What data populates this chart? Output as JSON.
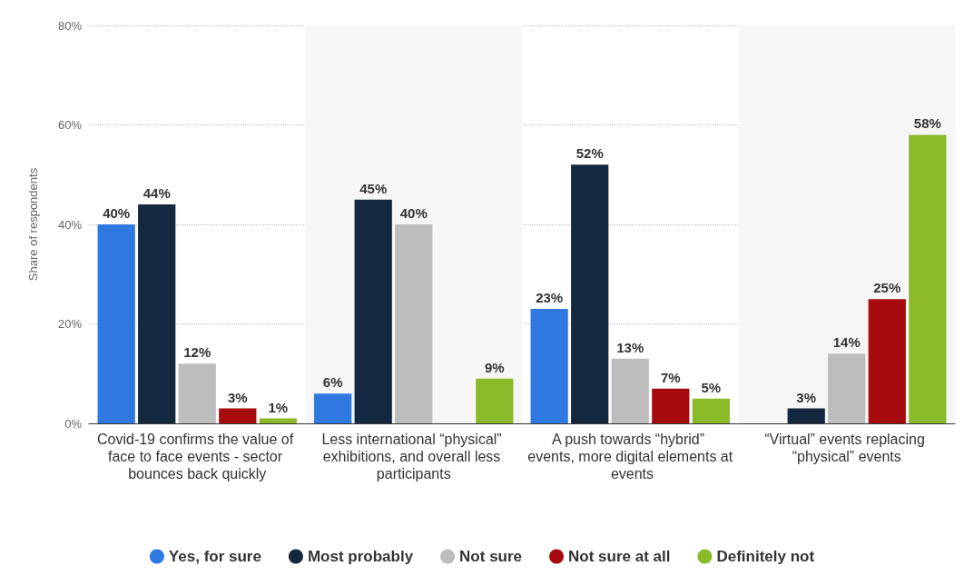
{
  "chart_data": {
    "type": "bar",
    "ylabel": "Share of respondents",
    "categories": [
      "Covid-19 confirms the value of face to face events - sector bounces back quickly",
      "Less international “physical” exhibitions, and overall less participants",
      "A push towards “hybrid” events, more digital elements at events",
      "“Virtual” events replacing “physical” events"
    ],
    "series": [
      {
        "name": "Yes, for sure",
        "color": "#2f78e0",
        "values": [
          40,
          6,
          23,
          null
        ],
        "value_labels": [
          "40%",
          "6%",
          "23%",
          null
        ]
      },
      {
        "name": "Most probably",
        "color": "#14283f",
        "values": [
          44,
          45,
          52,
          3
        ],
        "value_labels": [
          "44%",
          "45%",
          "52%",
          "3%"
        ]
      },
      {
        "name": "Not sure",
        "color": "#bdbdbd",
        "values": [
          12,
          40,
          13,
          14
        ],
        "value_labels": [
          "12%",
          "40%",
          "13%",
          "14%"
        ]
      },
      {
        "name": "Not sure at all",
        "color": "#a50b0f",
        "values": [
          3,
          null,
          7,
          25
        ],
        "value_labels": [
          "3%",
          null,
          "7%",
          "25%"
        ]
      },
      {
        "name": "Definitely not",
        "color": "#8aba2a",
        "values": [
          1,
          9,
          5,
          58
        ],
        "value_labels": [
          "1%",
          "9%",
          "5%",
          "58%"
        ]
      }
    ],
    "ylim": [
      0,
      80
    ],
    "yticks": [
      {
        "value": 0,
        "label": "0%"
      },
      {
        "value": 20,
        "label": "20%"
      },
      {
        "value": 40,
        "label": "40%"
      },
      {
        "value": 60,
        "label": "60%"
      },
      {
        "value": 80,
        "label": "80%"
      }
    ],
    "grid": "y",
    "legend": "bottom"
  }
}
